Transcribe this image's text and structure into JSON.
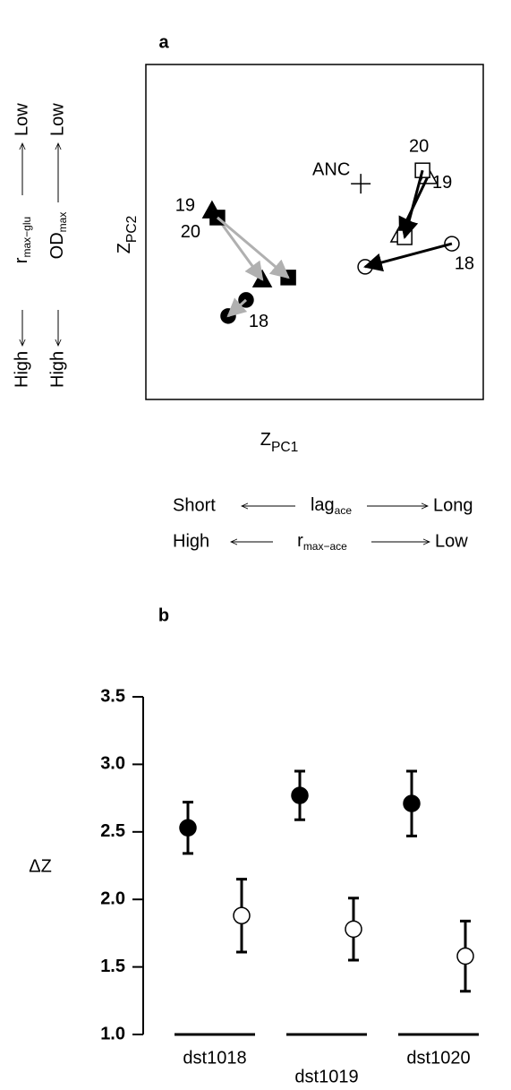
{
  "chart_data": [
    {
      "type": "scatter",
      "title": "a",
      "x_label": {
        "main": "Z",
        "sub": "PC1"
      },
      "y_label": {
        "main": "Z",
        "sub": "PC2"
      },
      "left_labels": [
        {
          "left": "High",
          "main": "r",
          "sub": "max−glu",
          "right": "Low"
        },
        {
          "left": "High",
          "main": "OD",
          "sub": "max",
          "right": "Low"
        }
      ],
      "bottom_labels": [
        {
          "left": "Short",
          "main": "lag",
          "sub": "ace",
          "right": "Long"
        },
        {
          "left": "High",
          "main": "r",
          "sub": "max−ace",
          "right": "Low"
        }
      ],
      "xlim": [
        0,
        100
      ],
      "ylim": [
        0,
        100
      ],
      "series": [
        {
          "name": "ANC",
          "marker": "plus",
          "color": "#000000",
          "x": [
            63.7
          ],
          "y": [
            64.4
          ]
        },
        {
          "name": "18",
          "marker": "circle",
          "fill": "#ffffff",
          "color": "#000000",
          "x": [
            90.7,
            65.0
          ],
          "y": [
            46.5,
            39.6
          ]
        },
        {
          "name": "19",
          "marker": "triangle",
          "fill": "#ffffff",
          "color": "#000000",
          "x": [
            83.6,
            75.3
          ],
          "y": [
            66.6,
            49.2
          ]
        },
        {
          "name": "20",
          "marker": "square",
          "fill": "#ffffff",
          "color": "#000000",
          "x": [
            82.0,
            76.7
          ],
          "y": [
            68.4,
            48.4
          ]
        },
        {
          "name": "19",
          "marker": "triangle",
          "fill": "#000000",
          "color": "#b0b0b0",
          "x": [
            19.6,
            34.5
          ],
          "y": [
            56.4,
            35.8
          ]
        },
        {
          "name": "20",
          "marker": "square",
          "fill": "#000000",
          "color": "#b0b0b0",
          "x": [
            21.2,
            42.2
          ],
          "y": [
            54.3,
            36.4
          ]
        },
        {
          "name": "18",
          "marker": "circle",
          "fill": "#000000",
          "color": "#b0b0b0",
          "x": [
            29.7,
            24.4
          ],
          "y": [
            29.7,
            24.9
          ]
        }
      ]
    },
    {
      "type": "errorbar",
      "title": "b",
      "y_label": "ΔZ",
      "categories": [
        "dst1018",
        "dst1019",
        "dst1020"
      ],
      "ylim": [
        1.0,
        3.5
      ],
      "yticks": [
        {
          "value": 1,
          "label": "1.0"
        },
        {
          "value": 1.5,
          "label": "1.5"
        },
        {
          "value": 2,
          "label": "2.0"
        },
        {
          "value": 2.5,
          "label": "2.5"
        },
        {
          "value": 3,
          "label": "3.0"
        },
        {
          "value": 3.5,
          "label": "3.5"
        }
      ],
      "series": [
        {
          "fill": "#000000",
          "values": [
            2.53,
            2.77,
            2.71
          ],
          "errors": [
            0.19,
            0.18,
            0.24
          ]
        },
        {
          "fill": "#ffffff",
          "values": [
            1.88,
            1.78,
            1.58
          ],
          "errors": [
            0.27,
            0.23,
            0.26
          ]
        }
      ]
    }
  ]
}
